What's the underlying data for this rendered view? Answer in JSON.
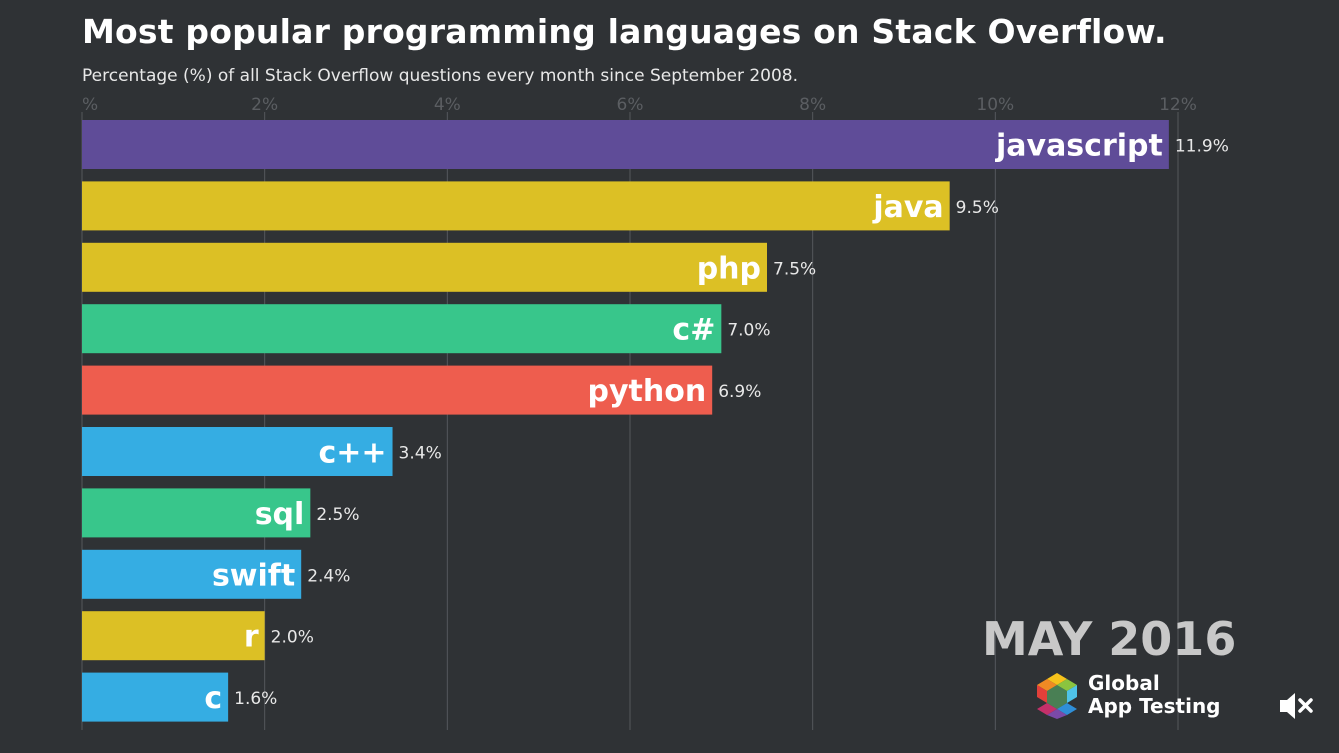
{
  "chart_data": {
    "type": "bar",
    "orientation": "horizontal",
    "title": "Most popular programming languages on Stack Overflow.",
    "subtitle": "Percentage (%) of all Stack Overflow questions every month since September 2008.",
    "x_ticks": [
      "%",
      "2%",
      "4%",
      "6%",
      "8%",
      "10%",
      "12%"
    ],
    "xlim": [
      0,
      12
    ],
    "xlabel": "",
    "ylabel": "",
    "grid": true,
    "series": [
      {
        "name": "javascript",
        "value": 11.9,
        "value_label": "11.9%",
        "color": "#5f4c98"
      },
      {
        "name": "java",
        "value": 9.5,
        "value_label": "9.5%",
        "color": "#dcc025"
      },
      {
        "name": "php",
        "value": 7.5,
        "value_label": "7.5%",
        "color": "#dcc025"
      },
      {
        "name": "c#",
        "value": 7.0,
        "value_label": "7.0%",
        "color": "#38c68b"
      },
      {
        "name": "python",
        "value": 6.9,
        "value_label": "6.9%",
        "color": "#ee5d4e"
      },
      {
        "name": "c++",
        "value": 3.4,
        "value_label": "3.4%",
        "color": "#35ade3"
      },
      {
        "name": "sql",
        "value": 2.5,
        "value_label": "2.5%",
        "color": "#38c68b"
      },
      {
        "name": "swift",
        "value": 2.4,
        "value_label": "2.4%",
        "color": "#35ade3"
      },
      {
        "name": "r",
        "value": 2.0,
        "value_label": "2.0%",
        "color": "#dcc025"
      },
      {
        "name": "c",
        "value": 1.6,
        "value_label": "1.6%",
        "color": "#35ade3"
      }
    ]
  },
  "date_label": "MAY 2016",
  "logo": {
    "line1": "Global",
    "line2": "App Testing"
  },
  "controls": {
    "mute_icon": "speaker-muted-icon"
  }
}
